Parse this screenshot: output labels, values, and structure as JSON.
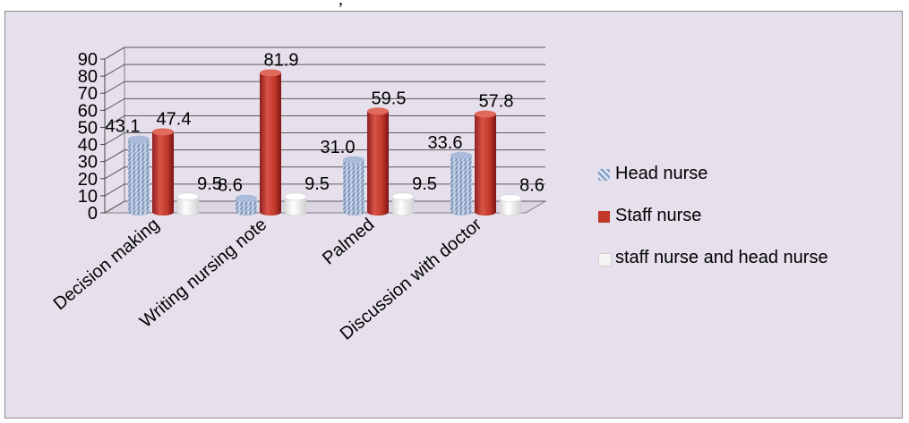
{
  "top_text": ", ",
  "chart_data": {
    "type": "bar",
    "categories": [
      "Decision making",
      "Writing nursing note",
      "Palmed",
      "Discussion with doctor"
    ],
    "series": [
      {
        "name": "Head nurse",
        "values": [
          43.1,
          8.6,
          31.0,
          33.6
        ],
        "labels": [
          "43.1",
          "8.6",
          "31.0",
          "33.6"
        ],
        "color": "#8ea5c9"
      },
      {
        "name": "Staff nurse",
        "values": [
          47.4,
          81.9,
          59.5,
          57.8
        ],
        "labels": [
          "47.4",
          "81.9",
          "59.5",
          "57.8"
        ],
        "color": "#c0392b"
      },
      {
        "name": "staff nurse and head nurse",
        "values": [
          9.5,
          9.5,
          9.5,
          8.6
        ],
        "labels": [
          "9.5",
          "9.5",
          "9.5",
          "8.6"
        ],
        "color": "#f4f4f4"
      }
    ],
    "yticks": [
      "0",
      "10",
      "20",
      "30",
      "40",
      "50",
      "60",
      "70",
      "80",
      "90"
    ],
    "ylim": [
      0,
      90
    ],
    "grid": true,
    "legend": "right",
    "style": "3d-cylinder"
  }
}
